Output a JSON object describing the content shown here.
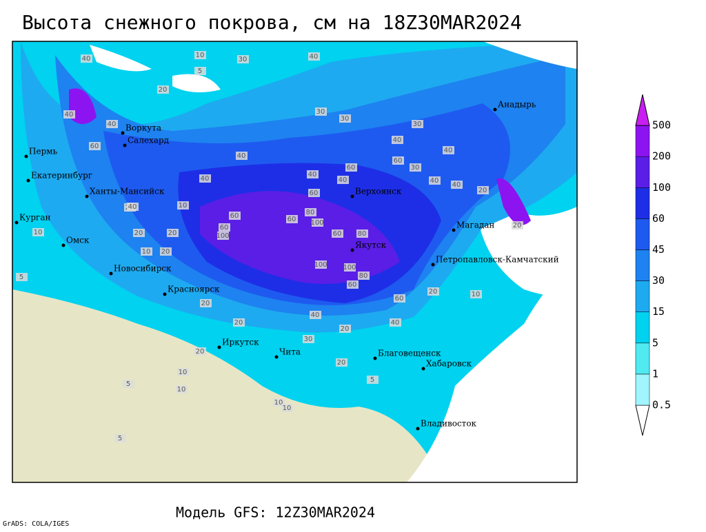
{
  "map": {
    "title": "Высота снежного покрова, см на 18Z30MAR2024",
    "subtitle": "Модель GFS: 12Z30MAR2024",
    "credit": "GrADS: COLA/IGES",
    "legend": {
      "levels": [
        0.5,
        1,
        5,
        15,
        30,
        45,
        60,
        100,
        200,
        500
      ],
      "colors": [
        "#ffffff",
        "#a0f5ff",
        "#50eaf0",
        "#00d2f0",
        "#1eaaf0",
        "#1e82f0",
        "#1e5af0",
        "#1e2ee6",
        "#5a1ee6",
        "#8c14f0",
        "#c81ef0"
      ]
    },
    "cities": [
      "Пермь",
      "Екатеринбург",
      "Воркута",
      "Салехард",
      "Ханты-Мансийск",
      "Курган",
      "Омск",
      "Новосибирск",
      "Красноярск",
      "Иркутск",
      "Чита",
      "Верхоянск",
      "Якутск",
      "Магадан",
      "Анадырь",
      "Петропавловск-Камчатский",
      "Благовещенск",
      "Хабаровск",
      "Владивосток"
    ],
    "contour_labels": [
      40,
      10,
      5,
      20,
      40,
      30,
      40,
      30,
      30,
      40,
      30,
      40,
      60,
      40,
      40,
      40,
      40,
      60,
      60,
      40,
      60,
      40,
      40,
      30,
      20,
      10,
      20,
      60,
      100,
      60,
      80,
      100,
      60,
      80,
      60,
      100,
      100,
      80,
      60,
      40,
      40,
      60,
      20,
      10,
      20,
      20,
      10,
      40,
      20,
      20,
      30,
      20,
      10,
      5,
      20,
      10,
      5,
      10,
      5,
      20,
      10,
      20,
      10,
      5,
      20
    ]
  }
}
